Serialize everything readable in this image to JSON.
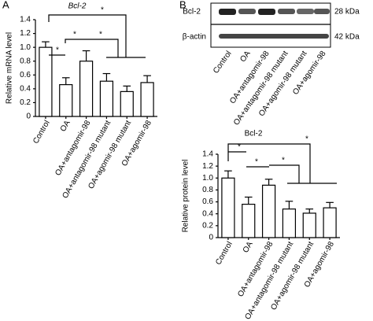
{
  "panels": [
    "A",
    "B"
  ],
  "blot": {
    "rows": [
      "Bcl-2",
      "β-actin"
    ],
    "sizes": [
      "28 kDa",
      "42 kDa"
    ],
    "lanes": [
      "Control",
      "OA",
      "OA+antagomir-98",
      "OA+antagomir-98 mutant",
      "OA+agomir-98 mutant",
      "OA+agomir-98"
    ]
  },
  "chart_data": [
    {
      "type": "bar",
      "title": "Bcl-2",
      "ylabel": "Relative mRNA level",
      "categories": [
        "Control",
        "OA",
        "OA+antagomir-98",
        "OA+antagomir-98 mutant",
        "OA+agomir-98 mutant",
        "OA+agomir-98"
      ],
      "values": [
        1.0,
        0.46,
        0.8,
        0.51,
        0.36,
        0.49
      ],
      "errors": [
        0.08,
        0.1,
        0.15,
        0.11,
        0.08,
        0.1
      ],
      "color": "#ffffff",
      "ylim": [
        0,
        1.4
      ],
      "yticks": [
        0,
        0.2,
        0.4,
        0.6,
        0.8,
        {
          "value": 1,
          "label": "1.0"
        },
        1.2,
        1.4
      ],
      "annotations": [
        "*",
        "*",
        "*",
        "*"
      ]
    },
    {
      "type": "bar",
      "title": "Bcl-2",
      "ylabel": "Relative protein level",
      "categories": [
        "Control",
        "OA",
        "OA+antagomir-98",
        "OA+antagomir-98 mutant",
        "OA+agomir-98 mutant",
        "OA+agomir-98"
      ],
      "values": [
        1.0,
        0.56,
        0.88,
        0.48,
        0.41,
        0.5
      ],
      "errors": [
        0.12,
        0.12,
        0.1,
        0.13,
        0.07,
        0.09
      ],
      "color": "#ffffff",
      "ylim": [
        0,
        1.4
      ],
      "yticks": [
        0,
        0.2,
        0.4,
        0.6,
        0.8,
        {
          "value": 1,
          "label": "1.0"
        },
        1.2,
        1.4
      ],
      "annotations": [
        "*",
        "*",
        "*",
        "*"
      ]
    }
  ]
}
